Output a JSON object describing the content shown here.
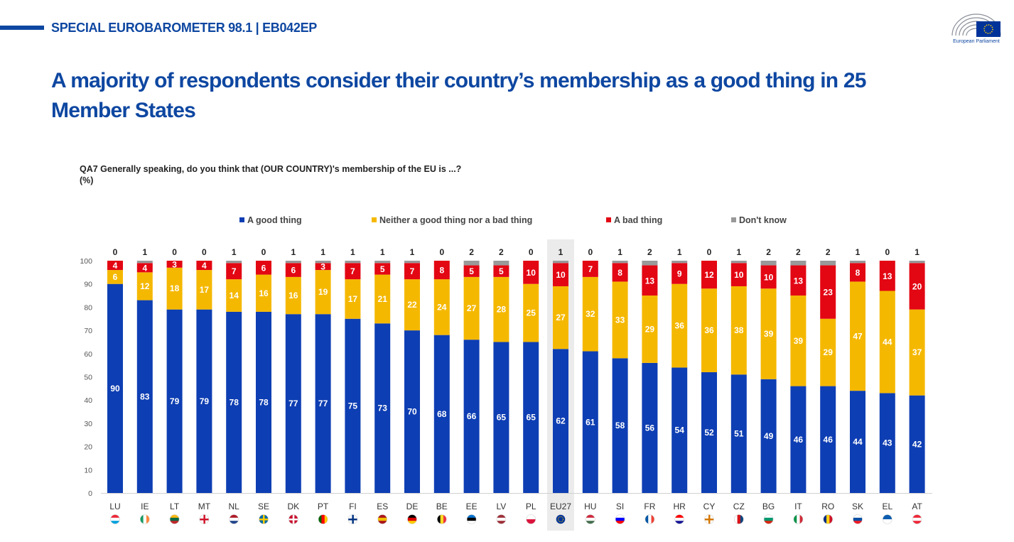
{
  "header": {
    "title": "SPECIAL EUROBAROMETER 98.1 | EB042EP"
  },
  "logo": {
    "name": "European Parliament",
    "icon": "european-parliament-logo"
  },
  "page_title": "A majority of respondents consider their country’s membership as a good thing in 25 Member States",
  "question": {
    "line1": "QA7  Generally speaking, do you think that (OUR COUNTRY)'s membership of the EU is ...?",
    "line2": "(%)"
  },
  "colors": {
    "good": "#0e3eb3",
    "neither": "#f5b800",
    "bad": "#e30613",
    "dont_know": "#999999",
    "highlight": "#ebebeb"
  },
  "chart_data": {
    "type": "bar",
    "stacked": true,
    "categories": [
      "LU",
      "IE",
      "LT",
      "MT",
      "NL",
      "SE",
      "DK",
      "PT",
      "FI",
      "ES",
      "DE",
      "BE",
      "EE",
      "LV",
      "PL",
      "EU27",
      "HU",
      "SI",
      "FR",
      "HR",
      "CY",
      "CZ",
      "BG",
      "IT",
      "RO",
      "SK",
      "EL",
      "AT"
    ],
    "highlight_category": "EU27",
    "series": [
      {
        "name": "A good thing",
        "key": "good",
        "values": [
          90,
          83,
          79,
          79,
          78,
          78,
          77,
          77,
          75,
          73,
          70,
          68,
          66,
          65,
          65,
          62,
          61,
          58,
          56,
          54,
          52,
          51,
          49,
          46,
          46,
          44,
          43,
          42
        ]
      },
      {
        "name": "Neither a good thing nor a bad thing",
        "key": "neither",
        "values": [
          6,
          12,
          18,
          17,
          14,
          16,
          16,
          19,
          17,
          21,
          22,
          24,
          27,
          28,
          25,
          27,
          32,
          33,
          29,
          36,
          36,
          38,
          39,
          39,
          29,
          47,
          44,
          37
        ]
      },
      {
        "name": "A bad thing",
        "key": "bad",
        "values": [
          4,
          4,
          3,
          4,
          7,
          6,
          6,
          3,
          7,
          5,
          7,
          8,
          5,
          5,
          10,
          10,
          7,
          8,
          13,
          9,
          12,
          10,
          10,
          13,
          23,
          8,
          13,
          20
        ]
      },
      {
        "name": "Don't know",
        "key": "dont_know",
        "values": [
          0,
          1,
          0,
          0,
          1,
          0,
          1,
          1,
          1,
          1,
          1,
          0,
          2,
          2,
          0,
          1,
          0,
          1,
          2,
          1,
          0,
          1,
          2,
          2,
          2,
          1,
          0,
          1
        ]
      }
    ],
    "ylim": [
      0,
      100
    ],
    "yticks": [
      0,
      10,
      20,
      30,
      40,
      50,
      60,
      70,
      80,
      90,
      100
    ],
    "legend_position": "top",
    "grid": false,
    "flags": {
      "LU": [
        "#ed2939",
        "#ffffff",
        "#00a1de"
      ],
      "IE": [
        "#169b62",
        "#ffffff",
        "#ff883e"
      ],
      "LT": [
        "#fdb913",
        "#006a44",
        "#c1272d"
      ],
      "MT": [
        "#ffffff",
        "#cf142b"
      ],
      "NL": [
        "#ae1c28",
        "#ffffff",
        "#21468b"
      ],
      "SE": [
        "#006aa7",
        "#fecc00"
      ],
      "DK": [
        "#c8102e",
        "#ffffff"
      ],
      "PT": [
        "#006600",
        "#ff0000",
        "#ffcc00"
      ],
      "FI": [
        "#ffffff",
        "#003580"
      ],
      "ES": [
        "#aa151b",
        "#f1bf00",
        "#aa151b"
      ],
      "DE": [
        "#000000",
        "#dd0000",
        "#ffce00"
      ],
      "BE": [
        "#000000",
        "#fdda24",
        "#ef3340"
      ],
      "EE": [
        "#0072ce",
        "#000000",
        "#ffffff"
      ],
      "LV": [
        "#9e3039",
        "#ffffff",
        "#9e3039"
      ],
      "PL": [
        "#ffffff",
        "#dc143c"
      ],
      "EU27": [
        "#003399",
        "#ffcc00"
      ],
      "HU": [
        "#cd2a3e",
        "#ffffff",
        "#436f4d"
      ],
      "SI": [
        "#ffffff",
        "#0000ff",
        "#ff0000"
      ],
      "FR": [
        "#0055a4",
        "#ffffff",
        "#ef4135"
      ],
      "HR": [
        "#ff0000",
        "#ffffff",
        "#171796"
      ],
      "CY": [
        "#ffffff",
        "#d57800"
      ],
      "CZ": [
        "#ffffff",
        "#d7141a",
        "#11457e"
      ],
      "BG": [
        "#ffffff",
        "#00966e",
        "#d62612"
      ],
      "IT": [
        "#009246",
        "#ffffff",
        "#ce2b37"
      ],
      "RO": [
        "#002b7f",
        "#fcd116",
        "#ce1126"
      ],
      "SK": [
        "#ffffff",
        "#0b4ea2",
        "#ee1c25"
      ],
      "EL": [
        "#0d5eaf",
        "#ffffff"
      ],
      "AT": [
        "#ed2939",
        "#ffffff",
        "#ed2939"
      ]
    }
  }
}
